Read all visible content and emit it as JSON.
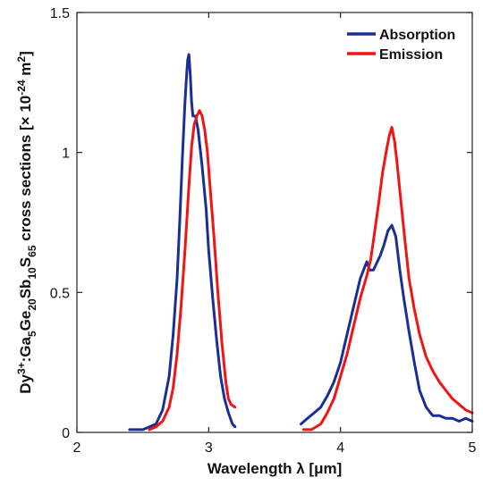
{
  "chart_data": {
    "type": "line",
    "xlabel": "Wavelength λ [μm]",
    "ylabel_parts": {
      "prefix": "Dy",
      "sup1": "3+",
      "mid1": ":Ga",
      "sub1": "5",
      "mid2": "Ge",
      "sub2": "20",
      "mid3": "Sb",
      "sub3": "10",
      "mid4": "S",
      "sub4": "65",
      "mid5": " cross sections [× 10",
      "sup2": "-24",
      "mid6": " m",
      "sup3": "2",
      "suffix": "]"
    },
    "xlim": [
      2,
      5
    ],
    "ylim": [
      0,
      1.5
    ],
    "xticks": [
      2,
      3,
      4,
      5
    ],
    "xtick_labels": [
      "2",
      "3",
      "4",
      "5"
    ],
    "yticks": [
      0,
      0.5,
      1,
      1.5
    ],
    "ytick_labels": [
      "0",
      "0.5",
      "1",
      "1.5"
    ],
    "grid": false,
    "legend_position": "top-right",
    "series": [
      {
        "name": "Absorption",
        "color": "#1a2f96",
        "x": [
          2.4,
          2.5,
          2.6,
          2.65,
          2.7,
          2.73,
          2.76,
          2.78,
          2.8,
          2.82,
          2.83,
          2.84,
          2.85,
          2.86,
          2.87,
          2.88,
          2.9,
          2.92,
          2.95,
          2.98,
          3.0,
          3.03,
          3.06,
          3.09,
          3.12,
          3.15,
          3.18,
          3.2,
          3.7,
          3.75,
          3.8,
          3.85,
          3.9,
          3.95,
          4.0,
          4.05,
          4.1,
          4.15,
          4.2,
          4.22,
          4.25,
          4.28,
          4.3,
          4.33,
          4.36,
          4.39,
          4.42,
          4.45,
          4.48,
          4.52,
          4.56,
          4.6,
          4.65,
          4.7,
          4.75,
          4.8,
          4.85,
          4.9,
          4.95,
          5.0
        ],
        "y": [
          0.01,
          0.01,
          0.03,
          0.08,
          0.2,
          0.35,
          0.55,
          0.75,
          0.98,
          1.18,
          1.26,
          1.33,
          1.35,
          1.28,
          1.18,
          1.13,
          1.13,
          1.08,
          0.95,
          0.8,
          0.65,
          0.48,
          0.33,
          0.2,
          0.12,
          0.07,
          0.03,
          0.02,
          0.03,
          0.05,
          0.07,
          0.09,
          0.13,
          0.18,
          0.25,
          0.35,
          0.45,
          0.55,
          0.61,
          0.58,
          0.58,
          0.61,
          0.63,
          0.67,
          0.72,
          0.74,
          0.7,
          0.58,
          0.48,
          0.36,
          0.25,
          0.15,
          0.09,
          0.06,
          0.06,
          0.05,
          0.05,
          0.04,
          0.05,
          0.04
        ]
      },
      {
        "name": "Emission",
        "color": "#f01414",
        "x": [
          2.55,
          2.6,
          2.65,
          2.7,
          2.73,
          2.76,
          2.79,
          2.82,
          2.85,
          2.87,
          2.89,
          2.91,
          2.93,
          2.95,
          2.97,
          2.99,
          3.01,
          3.04,
          3.07,
          3.1,
          3.13,
          3.15,
          3.17,
          3.2,
          3.72,
          3.78,
          3.85,
          3.9,
          3.95,
          4.0,
          4.05,
          4.1,
          4.15,
          4.2,
          4.23,
          4.26,
          4.29,
          4.32,
          4.35,
          4.37,
          4.39,
          4.41,
          4.43,
          4.46,
          4.49,
          4.52,
          4.56,
          4.6,
          4.65,
          4.7,
          4.75,
          4.8,
          4.85,
          4.9,
          4.95,
          5.0
        ],
        "y": [
          0.01,
          0.02,
          0.04,
          0.09,
          0.16,
          0.28,
          0.45,
          0.65,
          0.88,
          1.02,
          1.1,
          1.13,
          1.15,
          1.13,
          1.08,
          1.0,
          0.88,
          0.7,
          0.5,
          0.32,
          0.18,
          0.12,
          0.1,
          0.09,
          0.01,
          0.01,
          0.03,
          0.07,
          0.12,
          0.2,
          0.28,
          0.38,
          0.48,
          0.56,
          0.62,
          0.72,
          0.82,
          0.93,
          1.01,
          1.06,
          1.09,
          1.04,
          0.96,
          0.82,
          0.68,
          0.55,
          0.44,
          0.35,
          0.27,
          0.22,
          0.18,
          0.15,
          0.12,
          0.1,
          0.08,
          0.07
        ]
      }
    ]
  }
}
